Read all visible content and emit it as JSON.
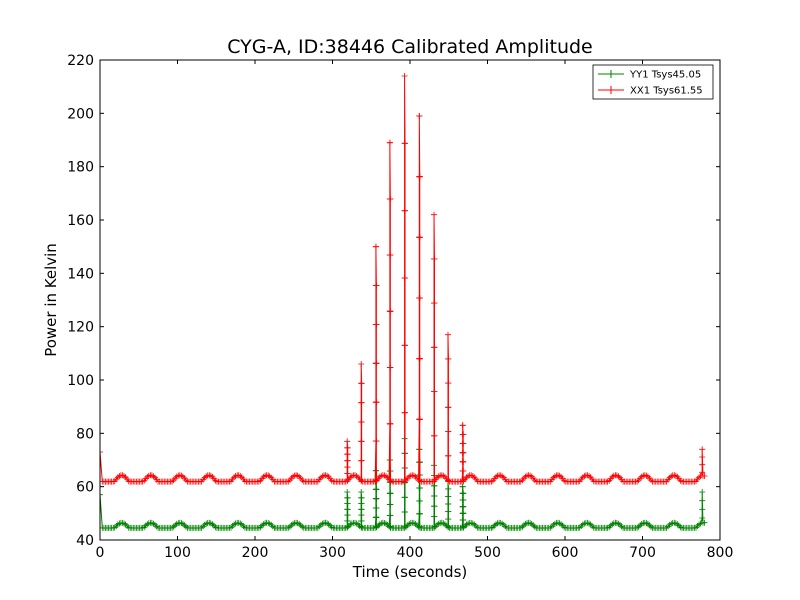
{
  "chart_data": {
    "type": "line",
    "title": "CYG-A, ID:38446 Calibrated Amplitude",
    "xlabel": "Time (seconds)",
    "ylabel": "Power in Kelvin",
    "xlim": [
      0,
      800
    ],
    "ylim": [
      40,
      220
    ],
    "xticks": [
      0,
      100,
      200,
      300,
      400,
      500,
      600,
      700,
      800
    ],
    "yticks": [
      40,
      60,
      80,
      100,
      120,
      140,
      160,
      180,
      200,
      220
    ],
    "grid": false,
    "legend_position": "top-right",
    "marker": "plus",
    "series": [
      {
        "name": "YY1 Tsys45.05",
        "color": "#008000",
        "baseline": 45.0,
        "ripple_amplitude": 1.6,
        "ripple_period": 37.5,
        "start_value": 57,
        "end_spike_value": 58,
        "spikes": [
          {
            "x": 319,
            "value": 58
          },
          {
            "x": 337,
            "value": 58
          },
          {
            "x": 356,
            "value": 66
          },
          {
            "x": 374,
            "value": 70
          },
          {
            "x": 393,
            "value": 78
          },
          {
            "x": 412,
            "value": 74
          },
          {
            "x": 431,
            "value": 68
          },
          {
            "x": 449,
            "value": 62
          },
          {
            "x": 468,
            "value": 60
          }
        ]
      },
      {
        "name": "XX1 Tsys61.55",
        "color": "#ff0000",
        "baseline": 62.5,
        "ripple_amplitude": 2.0,
        "ripple_period": 37.5,
        "start_value": 73,
        "end_spike_value": 74,
        "spikes": [
          {
            "x": 319,
            "value": 77
          },
          {
            "x": 337,
            "value": 106
          },
          {
            "x": 356,
            "value": 150
          },
          {
            "x": 374,
            "value": 189
          },
          {
            "x": 393,
            "value": 214
          },
          {
            "x": 412,
            "value": 199
          },
          {
            "x": 431,
            "value": 162
          },
          {
            "x": 449,
            "value": 117
          },
          {
            "x": 468,
            "value": 83
          }
        ]
      }
    ]
  }
}
